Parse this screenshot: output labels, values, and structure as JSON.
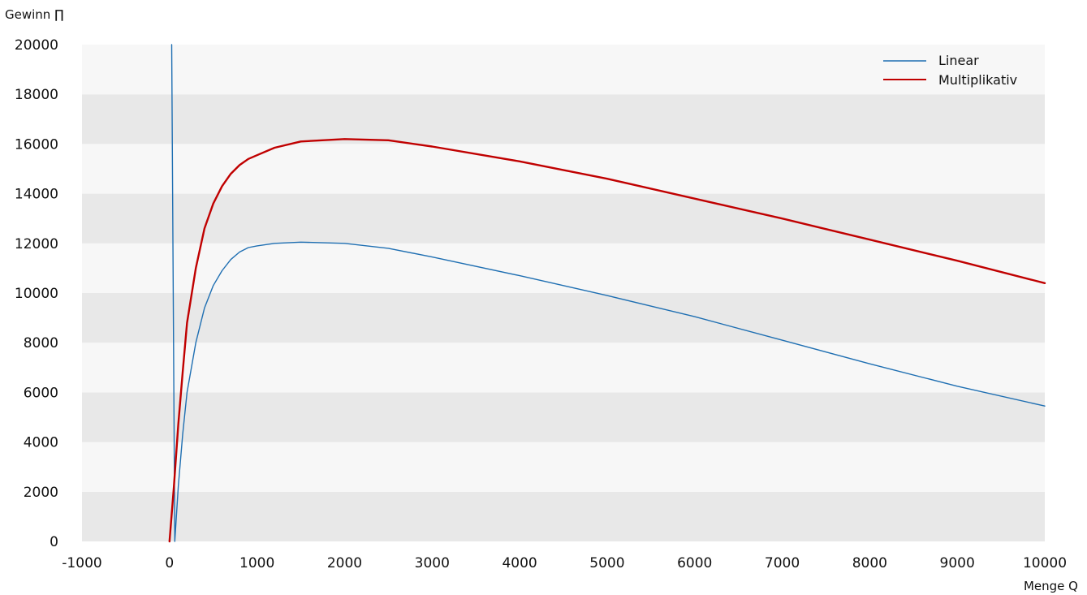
{
  "chart_data": {
    "type": "line",
    "title": "",
    "ylabel": "Gewinn ∏",
    "xlabel": "Menge Q",
    "xlim": [
      -1000,
      10000
    ],
    "ylim": [
      0,
      20000
    ],
    "x_ticks": [
      "-1000",
      "0",
      "1000",
      "2000",
      "3000",
      "4000",
      "5000",
      "6000",
      "7000",
      "8000",
      "9000",
      "10000"
    ],
    "y_ticks": [
      "0",
      "2000",
      "4000",
      "6000",
      "8000",
      "10000",
      "12000",
      "14000",
      "16000",
      "18000",
      "20000"
    ],
    "grid": "horizontal alternating bands",
    "legend_position": "top-right",
    "band_colors": [
      "#e8e8e8",
      "#f7f7f7"
    ],
    "series": [
      {
        "name": "Linear",
        "color": "#1f6fb2",
        "points": [
          [
            25,
            20000
          ],
          [
            60,
            0
          ],
          [
            100,
            2200
          ],
          [
            150,
            4300
          ],
          [
            200,
            6000
          ],
          [
            300,
            8000
          ],
          [
            400,
            9400
          ],
          [
            500,
            10300
          ],
          [
            600,
            10900
          ],
          [
            700,
            11350
          ],
          [
            800,
            11650
          ],
          [
            900,
            11830
          ],
          [
            1000,
            11900
          ],
          [
            1200,
            12000
          ],
          [
            1500,
            12050
          ],
          [
            2000,
            12000
          ],
          [
            2500,
            11800
          ],
          [
            3000,
            11450
          ],
          [
            4000,
            10700
          ],
          [
            5000,
            9900
          ],
          [
            6000,
            9050
          ],
          [
            7000,
            8100
          ],
          [
            8000,
            7150
          ],
          [
            9000,
            6250
          ],
          [
            10000,
            5450
          ]
        ]
      },
      {
        "name": "Multiplikativ",
        "color": "#c00000",
        "points": [
          [
            0,
            0
          ],
          [
            50,
            2200
          ],
          [
            100,
            4700
          ],
          [
            150,
            6800
          ],
          [
            200,
            8800
          ],
          [
            300,
            11000
          ],
          [
            400,
            12600
          ],
          [
            500,
            13600
          ],
          [
            600,
            14300
          ],
          [
            700,
            14800
          ],
          [
            800,
            15150
          ],
          [
            900,
            15400
          ],
          [
            1000,
            15550
          ],
          [
            1200,
            15850
          ],
          [
            1500,
            16100
          ],
          [
            2000,
            16200
          ],
          [
            2500,
            16150
          ],
          [
            3000,
            15900
          ],
          [
            4000,
            15300
          ],
          [
            5000,
            14600
          ],
          [
            6000,
            13800
          ],
          [
            7000,
            13000
          ],
          [
            8000,
            12150
          ],
          [
            9000,
            11300
          ],
          [
            10000,
            10400
          ]
        ]
      }
    ]
  }
}
